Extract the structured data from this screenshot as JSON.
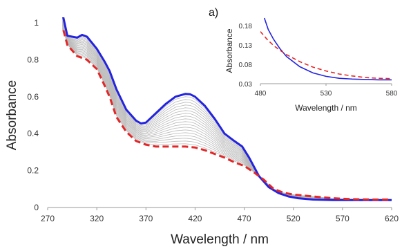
{
  "chart_data": [
    {
      "type": "line",
      "panel_label": "",
      "xlabel": "Wavelength / nm",
      "ylabel": "Absorbance",
      "xlim": [
        270,
        620
      ],
      "ylim": [
        0,
        1
      ],
      "xticks": [
        "270",
        "320",
        "370",
        "420",
        "470",
        "520",
        "570",
        "620"
      ],
      "yticks": [
        "0",
        "0.2",
        "0.4",
        "0.6",
        "0.8",
        "1"
      ],
      "grid": false,
      "legend": "none",
      "intermediate_count": 18,
      "series": [
        {
          "role": "final",
          "color": "#2323e0",
          "style": "solid",
          "x": [
            283,
            290,
            300,
            305,
            310,
            320,
            328,
            333,
            340,
            350,
            360,
            365,
            370,
            380,
            390,
            400,
            410,
            415,
            420,
            430,
            440,
            450,
            460,
            468,
            475,
            485,
            495,
            505,
            515,
            525,
            540,
            560,
            580,
            600,
            620
          ],
          "y": [
            1.1,
            0.93,
            0.92,
            0.935,
            0.925,
            0.86,
            0.79,
            0.74,
            0.64,
            0.53,
            0.47,
            0.455,
            0.46,
            0.51,
            0.56,
            0.6,
            0.615,
            0.613,
            0.6,
            0.55,
            0.48,
            0.4,
            0.36,
            0.33,
            0.27,
            0.17,
            0.11,
            0.078,
            0.06,
            0.05,
            0.043,
            0.04,
            0.04,
            0.04,
            0.04
          ]
        },
        {
          "role": "initial",
          "color": "#e52626",
          "style": "dashed",
          "x": [
            286,
            290,
            300,
            310,
            320,
            328,
            333,
            340,
            350,
            360,
            370,
            380,
            390,
            400,
            410,
            420,
            430,
            440,
            450,
            460,
            470,
            480,
            490,
            500,
            510,
            520,
            540,
            560,
            580,
            600,
            620
          ],
          "y": [
            0.96,
            0.88,
            0.82,
            0.8,
            0.75,
            0.66,
            0.6,
            0.49,
            0.41,
            0.36,
            0.34,
            0.33,
            0.33,
            0.33,
            0.33,
            0.325,
            0.31,
            0.29,
            0.27,
            0.245,
            0.225,
            0.19,
            0.15,
            0.1,
            0.08,
            0.07,
            0.06,
            0.05,
            0.045,
            0.043,
            0.043
          ]
        }
      ]
    },
    {
      "type": "line",
      "panel_label": "a)",
      "xlabel": "Wavelength / nm",
      "ylabel": "Absorbance",
      "xlim": [
        480,
        580
      ],
      "ylim": [
        0.03,
        0.2
      ],
      "xticks": [
        "480",
        "530",
        "580"
      ],
      "yticks": [
        "0.03",
        "0.08",
        "0.13",
        "0.18"
      ],
      "grid": false,
      "legend": "none",
      "series": [
        {
          "role": "final",
          "color": "#2323e0",
          "style": "solid",
          "x": [
            483,
            486,
            490,
            495,
            500,
            510,
            520,
            530,
            540,
            550,
            560,
            570,
            580
          ],
          "y": [
            0.2,
            0.17,
            0.145,
            0.12,
            0.1,
            0.074,
            0.058,
            0.049,
            0.044,
            0.042,
            0.041,
            0.04,
            0.04
          ]
        },
        {
          "role": "initial",
          "color": "#e52626",
          "style": "dashed",
          "x": [
            480,
            485,
            490,
            495,
            500,
            510,
            520,
            530,
            540,
            550,
            560,
            570,
            580
          ],
          "y": [
            0.165,
            0.145,
            0.129,
            0.116,
            0.105,
            0.087,
            0.073,
            0.063,
            0.055,
            0.05,
            0.046,
            0.044,
            0.043
          ]
        }
      ]
    }
  ]
}
